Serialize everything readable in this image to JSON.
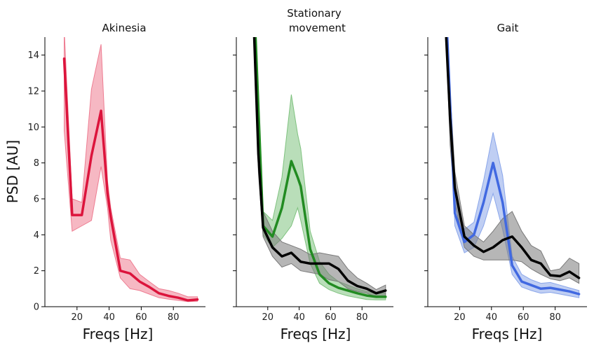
{
  "chart_data": {
    "type": "line",
    "ylabel": "PSD [AU]",
    "ylim": [
      0,
      15
    ],
    "yticks": [
      "0",
      "2",
      "4",
      "6",
      "8",
      "10",
      "12",
      "14"
    ],
    "xlim": [
      0,
      100
    ],
    "xticks": [
      "20",
      "40",
      "60",
      "80"
    ],
    "legend": "none",
    "grid": false,
    "panels": [
      {
        "title_lines": [
          "Akinesia"
        ],
        "xlabel": "Freqs [Hz]",
        "series": [
          {
            "color": "#dc143c",
            "band_color": "#ee7d92",
            "x": [
              12,
              17,
              23,
              29,
              35,
              39,
              41,
              47,
              53,
              59,
              65,
              71,
              77,
              83,
              89,
              95
            ],
            "y": [
              13.8,
              5.1,
              5.1,
              8.4,
              10.9,
              6.3,
              5.0,
              2.0,
              1.85,
              1.4,
              1.1,
              0.75,
              0.6,
              0.5,
              0.35,
              0.4
            ],
            "lo": [
              9.8,
              4.2,
              4.5,
              4.8,
              7.8,
              5.5,
              3.7,
              1.6,
              1.0,
              0.9,
              0.7,
              0.5,
              0.42,
              0.35,
              0.28,
              0.3
            ],
            "hi": [
              15.5,
              6.0,
              5.8,
              12.1,
              14.6,
              7.0,
              5.5,
              2.7,
              2.6,
              1.8,
              1.4,
              1.0,
              0.9,
              0.75,
              0.55,
              0.55
            ]
          }
        ]
      },
      {
        "title_lines": [
          "Stationary",
          " movement"
        ],
        "xlabel": "Freqs [Hz]",
        "series": [
          {
            "color": "#228b22",
            "band_color": "#7fc27f",
            "x": [
              12,
              17,
              23,
              29,
              35,
              39,
              41,
              47,
              53,
              59,
              65,
              71,
              77,
              83,
              89,
              95
            ],
            "y": [
              15.5,
              4.5,
              3.9,
              5.5,
              8.1,
              7.2,
              6.7,
              3.2,
              1.8,
              1.3,
              1.05,
              0.9,
              0.75,
              0.62,
              0.55,
              0.55
            ],
            "lo": [
              15.5,
              4.0,
              3.3,
              3.8,
              4.5,
              5.5,
              4.8,
              2.4,
              1.3,
              0.95,
              0.75,
              0.6,
              0.5,
              0.4,
              0.38,
              0.38
            ],
            "hi": [
              15.5,
              5.3,
              4.8,
              7.2,
              11.8,
              9.6,
              8.8,
              4.2,
              2.5,
              1.8,
              1.4,
              1.2,
              1.0,
              0.85,
              0.75,
              0.75
            ]
          },
          {
            "color": "#000000",
            "band_color": "#7a7a7a",
            "x": [
              11,
              14,
              17,
              23,
              29,
              35,
              41,
              47,
              53,
              59,
              65,
              71,
              77,
              83,
              89,
              95
            ],
            "y": [
              16,
              8.5,
              4.4,
              3.3,
              2.8,
              3.0,
              2.5,
              2.4,
              2.4,
              2.4,
              2.1,
              1.45,
              1.15,
              1.0,
              0.75,
              0.9
            ],
            "lo": [
              16,
              7.5,
              3.9,
              2.8,
              2.2,
              2.4,
              2.0,
              1.9,
              1.8,
              1.5,
              1.4,
              1.0,
              0.85,
              0.75,
              0.55,
              0.6
            ],
            "hi": [
              16,
              9.5,
              5.3,
              4.2,
              3.6,
              3.4,
              3.2,
              2.9,
              3.0,
              2.9,
              2.8,
              2.1,
              1.6,
              1.3,
              0.95,
              1.2
            ]
          }
        ]
      },
      {
        "title_lines": [
          "Gait"
        ],
        "xlabel": "Freqs [Hz]",
        "series": [
          {
            "color": "#4169e1",
            "band_color": "#8aa6ea",
            "x": [
              12,
              17,
              23,
              29,
              35,
              41,
              47,
              53,
              59,
              65,
              71,
              77,
              83,
              89,
              95
            ],
            "y": [
              15.5,
              5.2,
              3.6,
              4.0,
              5.8,
              8.0,
              5.8,
              2.3,
              1.4,
              1.2,
              1.0,
              1.05,
              0.95,
              0.85,
              0.7
            ],
            "lo": [
              15.5,
              4.5,
              3.0,
              3.3,
              4.5,
              6.3,
              4.3,
              1.8,
              1.1,
              0.9,
              0.75,
              0.8,
              0.7,
              0.6,
              0.5
            ],
            "hi": [
              15.5,
              6.0,
              4.3,
              4.7,
              7.0,
              9.7,
              7.3,
              2.8,
              1.8,
              1.5,
              1.3,
              1.35,
              1.2,
              1.05,
              0.9
            ]
          },
          {
            "color": "#000000",
            "band_color": "#7a7a7a",
            "x": [
              11,
              14,
              17,
              23,
              29,
              35,
              41,
              47,
              53,
              59,
              65,
              71,
              77,
              83,
              89,
              95
            ],
            "y": [
              16,
              10.5,
              6.6,
              3.9,
              3.4,
              3.05,
              3.3,
              3.7,
              3.9,
              3.3,
              2.6,
              2.4,
              1.75,
              1.7,
              1.95,
              1.6
            ],
            "lo": [
              16,
              9.0,
              5.8,
              3.3,
              2.8,
              2.6,
              2.6,
              2.6,
              2.6,
              2.5,
              2.1,
              1.8,
              1.55,
              1.45,
              1.6,
              1.3
            ],
            "hi": [
              16,
              12.0,
              7.5,
              4.5,
              4.0,
              3.6,
              4.2,
              4.9,
              5.3,
              4.2,
              3.4,
              3.1,
              2.0,
              2.1,
              2.7,
              2.4
            ]
          }
        ]
      }
    ]
  }
}
